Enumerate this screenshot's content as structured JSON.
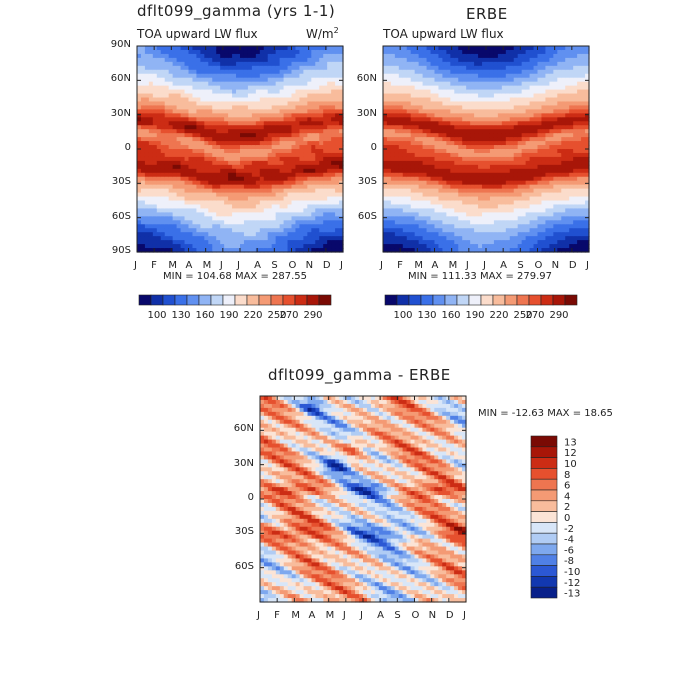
{
  "chart_data": [
    {
      "type": "heatmap",
      "title": "dflt099_gamma (yrs 1-1)",
      "subtitle": "TOA upward LW flux",
      "units_label": "W/m",
      "units_sup": "2",
      "stats": "MIN = 104.68 MAX = 287.55",
      "x_ticks": [
        "J",
        "F",
        "M",
        "A",
        "M",
        "J",
        "J",
        "A",
        "S",
        "O",
        "N",
        "D",
        "J"
      ],
      "y_ticks": [
        "90N",
        "60N",
        "30N",
        "0",
        "30S",
        "60S",
        "90S"
      ],
      "ylim": [
        -90,
        90
      ],
      "colorbar_labels": [
        "100",
        "130",
        "160",
        "190",
        "220",
        "250",
        "270",
        "290"
      ]
    },
    {
      "type": "heatmap",
      "title": "ERBE",
      "subtitle": "TOA upward LW flux",
      "stats": "MIN = 111.33 MAX = 279.97",
      "x_ticks": [
        "J",
        "F",
        "M",
        "A",
        "M",
        "J",
        "J",
        "A",
        "S",
        "O",
        "N",
        "D",
        "J"
      ],
      "y_ticks": [
        "60N",
        "30N",
        "0",
        "30S",
        "60S"
      ],
      "ylim": [
        -90,
        90
      ],
      "colorbar_labels": [
        "100",
        "130",
        "160",
        "190",
        "220",
        "250",
        "270",
        "290"
      ]
    },
    {
      "type": "heatmap",
      "title": "dflt099_gamma - ERBE",
      "stats": "MIN = -12.63 MAX =  18.65",
      "x_ticks": [
        "J",
        "F",
        "M",
        "A",
        "M",
        "J",
        "J",
        "A",
        "S",
        "O",
        "N",
        "D",
        "J"
      ],
      "y_ticks": [
        "60N",
        "30N",
        "0",
        "30S",
        "60S"
      ],
      "ylim": [
        -90,
        90
      ],
      "colorbar_labels": [
        "13",
        "12",
        "10",
        "8",
        "6",
        "4",
        "2",
        "0",
        "-2",
        "-4",
        "-6",
        "-8",
        "-10",
        "-12",
        "-13"
      ]
    }
  ],
  "colors": {
    "flux_scale": [
      "#08086b",
      "#1030a8",
      "#2050d0",
      "#3a70e8",
      "#6090f0",
      "#90b4f4",
      "#c0d6f6",
      "#eef0fa",
      "#fbdccb",
      "#f8bc9c",
      "#f49a74",
      "#ee7550",
      "#e6502e",
      "#cc2c14",
      "#a81608",
      "#7a0a04"
    ],
    "diff_scale": [
      "#7a0a04",
      "#a81608",
      "#cc2c14",
      "#e6502e",
      "#ee7550",
      "#f49a74",
      "#f8bc9c",
      "#fbe4d6",
      "#d8e6f8",
      "#b0ccf4",
      "#7ea8ee",
      "#5080e6",
      "#2c58d4",
      "#1238b0",
      "#08208a"
    ]
  }
}
